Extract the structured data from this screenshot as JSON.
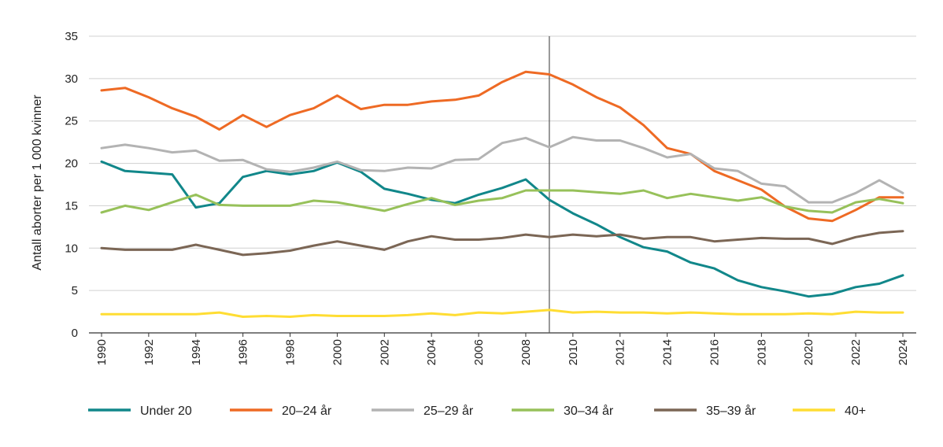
{
  "chart_data": {
    "type": "line",
    "title": "",
    "xlabel": "",
    "ylabel": "Antall aborter per 1 000 kvinner",
    "ylim": [
      0,
      35
    ],
    "yticks": [
      0,
      5,
      10,
      15,
      20,
      25,
      30,
      35
    ],
    "xlim": [
      1990,
      2024
    ],
    "xticks": [
      1990,
      1992,
      1994,
      1996,
      1998,
      2000,
      2002,
      2004,
      2006,
      2008,
      2010,
      2012,
      2014,
      2016,
      2018,
      2020,
      2022,
      2024
    ],
    "vertical_marker_x": 2009,
    "grid": "horizontal",
    "legend_position": "bottom",
    "x": [
      1990,
      1991,
      1992,
      1993,
      1994,
      1995,
      1996,
      1997,
      1998,
      1999,
      2000,
      2001,
      2002,
      2003,
      2004,
      2005,
      2006,
      2007,
      2008,
      2009,
      2010,
      2011,
      2012,
      2013,
      2014,
      2015,
      2016,
      2017,
      2018,
      2019,
      2020,
      2021,
      2022,
      2023,
      2024
    ],
    "series": [
      {
        "name": "Under 20",
        "color": "#11878a",
        "values": [
          20.2,
          19.1,
          18.9,
          18.7,
          14.8,
          15.3,
          18.4,
          19.1,
          18.7,
          19.1,
          20.1,
          19.0,
          17.0,
          16.4,
          15.7,
          15.3,
          16.3,
          17.1,
          18.1,
          15.7,
          14.1,
          12.8,
          11.3,
          10.1,
          9.6,
          8.3,
          7.6,
          6.2,
          5.4,
          4.9,
          4.3,
          4.6,
          5.4,
          5.8,
          6.8
        ]
      },
      {
        "name": "20–24 år",
        "color": "#ee6a24",
        "values": [
          28.6,
          28.9,
          27.8,
          26.5,
          25.5,
          24.0,
          25.7,
          24.3,
          25.7,
          26.5,
          28.0,
          26.4,
          26.9,
          26.9,
          27.3,
          27.5,
          28.0,
          29.6,
          30.8,
          30.5,
          29.3,
          27.8,
          26.6,
          24.5,
          21.8,
          21.1,
          19.1,
          18.0,
          16.9,
          14.9,
          13.5,
          13.2,
          14.5,
          16.0,
          16.0
        ]
      },
      {
        "name": "25–29 år",
        "color": "#b3b3b3",
        "values": [
          21.8,
          22.2,
          21.8,
          21.3,
          21.5,
          20.3,
          20.4,
          19.3,
          19.0,
          19.5,
          20.2,
          19.2,
          19.1,
          19.5,
          19.4,
          20.4,
          20.5,
          22.4,
          23.0,
          21.9,
          23.1,
          22.7,
          22.7,
          21.8,
          20.7,
          21.1,
          19.4,
          19.1,
          17.6,
          17.3,
          15.4,
          15.4,
          16.5,
          18.0,
          16.5
        ]
      },
      {
        "name": "30–34 år",
        "color": "#97c15a",
        "values": [
          14.2,
          15.0,
          14.5,
          15.4,
          16.3,
          15.1,
          15.0,
          15.0,
          15.0,
          15.6,
          15.4,
          14.9,
          14.4,
          15.2,
          15.9,
          15.1,
          15.6,
          15.9,
          16.8,
          16.8,
          16.8,
          16.6,
          16.4,
          16.8,
          15.9,
          16.4,
          16.0,
          15.6,
          16.0,
          14.9,
          14.4,
          14.2,
          15.4,
          15.8,
          15.3
        ]
      },
      {
        "name": "35–39 år",
        "color": "#7b6655",
        "values": [
          10.0,
          9.8,
          9.8,
          9.8,
          10.4,
          9.8,
          9.2,
          9.4,
          9.7,
          10.3,
          10.8,
          10.3,
          9.8,
          10.8,
          11.4,
          11.0,
          11.0,
          11.2,
          11.6,
          11.3,
          11.6,
          11.4,
          11.6,
          11.1,
          11.3,
          11.3,
          10.8,
          11.0,
          11.2,
          11.1,
          11.1,
          10.5,
          11.3,
          11.8,
          12.0
        ]
      },
      {
        "name": "40+",
        "color": "#ffdd33",
        "values": [
          2.2,
          2.2,
          2.2,
          2.2,
          2.2,
          2.4,
          1.9,
          2.0,
          1.9,
          2.1,
          2.0,
          2.0,
          2.0,
          2.1,
          2.3,
          2.1,
          2.4,
          2.3,
          2.5,
          2.7,
          2.4,
          2.5,
          2.4,
          2.4,
          2.3,
          2.4,
          2.3,
          2.2,
          2.2,
          2.2,
          2.3,
          2.2,
          2.5,
          2.4,
          2.4
        ]
      }
    ]
  }
}
